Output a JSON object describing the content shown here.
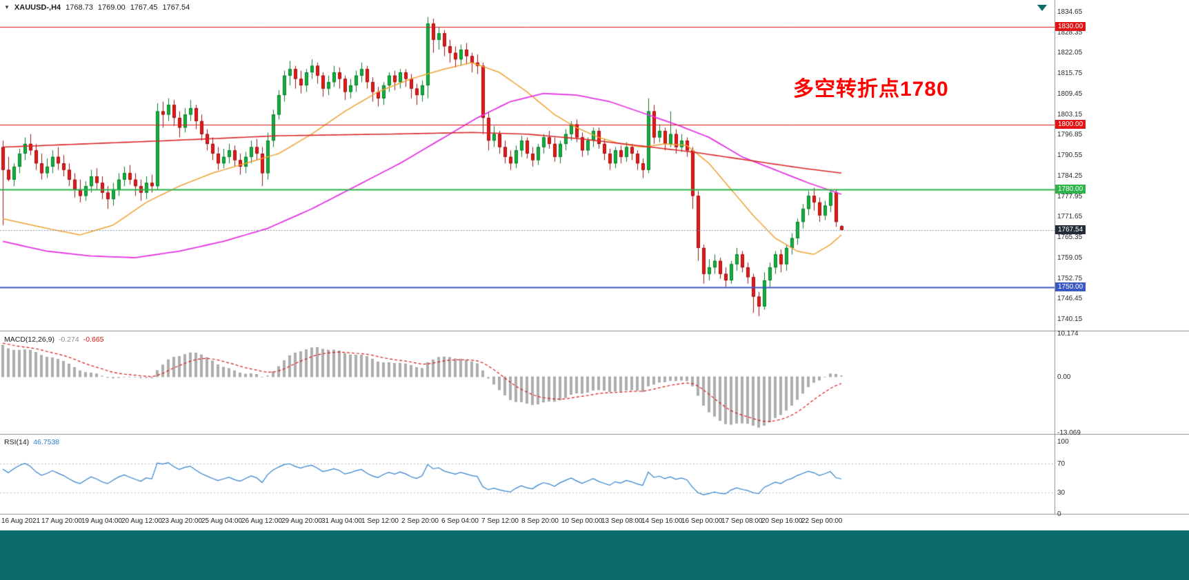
{
  "window": {
    "symbol_tf": "XAUUSD-,H4",
    "ohlc": {
      "open": "1768.73",
      "high": "1769.00",
      "low": "1767.45",
      "close": "1767.54"
    }
  },
  "annotation": {
    "text": "多空转折点1780"
  },
  "colors": {
    "annotation": "#ff0000",
    "bottom_bar": "#0b6b6b",
    "shift_marker": "#0b6b6b",
    "separator": "#8f8f8f",
    "axis_border": "#8f8f8f",
    "current_line": "#8294aa",
    "background": "#ffffff"
  },
  "chart_data": {
    "type": "candlestick",
    "symbol": "XAUUSD-",
    "timeframe": "H4",
    "up_color": "#12b13e",
    "up_stroke": "#077a28",
    "down_color": "#e81717",
    "down_stroke": "#9e0f0f",
    "price_ticks": [
      "1834.65",
      "1828.35",
      "1822.05",
      "1815.75",
      "1809.45",
      "1803.15",
      "1796.85",
      "1790.55",
      "1784.25",
      "1777.95",
      "1771.65",
      "1765.35",
      "1759.05",
      "1752.75",
      "1746.45",
      "1740.15"
    ],
    "time_labels": [
      "16 Aug 2021",
      "17 Aug 20:00",
      "19 Aug 04:00",
      "20 Aug 12:00",
      "23 Aug 20:00",
      "25 Aug 04:00",
      "26 Aug 12:00",
      "29 Aug 20:00",
      "31 Aug 04:00",
      "1 Sep 12:00",
      "2 Sep 20:00",
      "6 Sep 04:00",
      "7 Sep 12:00",
      "8 Sep 20:00",
      "10 Sep 00:00",
      "13 Sep 08:00",
      "14 Sep 16:00",
      "16 Sep 00:00",
      "17 Sep 08:00",
      "20 Sep 16:00",
      "22 Sep 00:00"
    ],
    "horizontal_levels": [
      {
        "label": "1830.00",
        "price": 1830.0,
        "color": "#e01414",
        "width": 1
      },
      {
        "label": "1800.00",
        "price": 1800.0,
        "color": "#e01414",
        "width": 1
      },
      {
        "label": "1780.00",
        "price": 1780.0,
        "color": "#2cb34a",
        "width": 2
      },
      {
        "label": "1750.00",
        "price": 1750.0,
        "color": "#3a57c4",
        "width": 2
      }
    ],
    "current_price": {
      "label": "1767.54",
      "price": 1767.54,
      "badge_color": "#222c38"
    },
    "candles": [
      [
        1793,
        1795,
        1769,
        1786
      ],
      [
        1786,
        1790,
        1782.5,
        1783
      ],
      [
        1783,
        1788,
        1781,
        1787
      ],
      [
        1787,
        1792.5,
        1785,
        1791
      ],
      [
        1791,
        1796,
        1789,
        1794
      ],
      [
        1794,
        1797,
        1790.5,
        1792
      ],
      [
        1792,
        1794,
        1786,
        1788
      ],
      [
        1788,
        1791,
        1783,
        1785
      ],
      [
        1785,
        1789.5,
        1783.5,
        1787
      ],
      [
        1787,
        1792,
        1785,
        1790
      ],
      [
        1790,
        1793,
        1786,
        1788
      ],
      [
        1788,
        1790.5,
        1784,
        1786
      ],
      [
        1786,
        1788,
        1781,
        1783
      ],
      [
        1783,
        1785,
        1777.5,
        1780
      ],
      [
        1780,
        1783,
        1776,
        1778
      ],
      [
        1778,
        1782.5,
        1776.5,
        1781
      ],
      [
        1781,
        1786,
        1779,
        1784
      ],
      [
        1784,
        1786.5,
        1780,
        1782
      ],
      [
        1782,
        1784,
        1777,
        1779
      ],
      [
        1779,
        1781,
        1774,
        1777
      ],
      [
        1777,
        1782,
        1775,
        1780
      ],
      [
        1780,
        1785,
        1778,
        1783
      ],
      [
        1783,
        1787,
        1781,
        1785
      ],
      [
        1785,
        1787.5,
        1781.5,
        1783
      ],
      [
        1783,
        1785,
        1778,
        1781
      ],
      [
        1781,
        1783,
        1776.5,
        1779
      ],
      [
        1779,
        1784,
        1777,
        1782
      ],
      [
        1782,
        1784.5,
        1779,
        1781
      ],
      [
        1781,
        1806.5,
        1780,
        1804
      ],
      [
        1804,
        1807,
        1799,
        1803
      ],
      [
        1803,
        1808,
        1801,
        1806
      ],
      [
        1806,
        1807.5,
        1799.5,
        1802
      ],
      [
        1802,
        1804,
        1796,
        1799
      ],
      [
        1799,
        1805,
        1797.5,
        1803
      ],
      [
        1803,
        1807.5,
        1801,
        1805
      ],
      [
        1805,
        1806,
        1798.5,
        1801
      ],
      [
        1801,
        1803,
        1795,
        1797
      ],
      [
        1797,
        1798.5,
        1792,
        1794
      ],
      [
        1794,
        1796,
        1789,
        1791
      ],
      [
        1791,
        1793,
        1786,
        1788
      ],
      [
        1788,
        1792.5,
        1786.5,
        1790
      ],
      [
        1790,
        1794,
        1788,
        1792
      ],
      [
        1792,
        1793.5,
        1787,
        1789
      ],
      [
        1789,
        1791,
        1784.5,
        1787
      ],
      [
        1787,
        1791.5,
        1785,
        1790
      ],
      [
        1790,
        1795,
        1788,
        1793
      ],
      [
        1793,
        1795.5,
        1789,
        1791
      ],
      [
        1791,
        1793,
        1781,
        1785
      ],
      [
        1785,
        1797.5,
        1783,
        1795
      ],
      [
        1795,
        1804.5,
        1793,
        1803
      ],
      [
        1803,
        1810.5,
        1801.5,
        1809
      ],
      [
        1809,
        1816.5,
        1807,
        1815
      ],
      [
        1815,
        1819.5,
        1812,
        1817
      ],
      [
        1817,
        1818,
        1811,
        1814
      ],
      [
        1814,
        1816.5,
        1809.5,
        1812
      ],
      [
        1812,
        1817,
        1810,
        1816
      ],
      [
        1816,
        1820,
        1814,
        1818
      ],
      [
        1818,
        1819,
        1812.5,
        1815
      ],
      [
        1815,
        1816,
        1808.5,
        1811
      ],
      [
        1811,
        1815,
        1809,
        1813
      ],
      [
        1813,
        1818,
        1811.5,
        1816
      ],
      [
        1816,
        1817.5,
        1811,
        1814
      ],
      [
        1814,
        1815,
        1807.5,
        1810
      ],
      [
        1810,
        1814,
        1808,
        1812
      ],
      [
        1812,
        1816.5,
        1810,
        1815
      ],
      [
        1815,
        1819,
        1813,
        1817
      ],
      [
        1817,
        1818,
        1811,
        1813
      ],
      [
        1813,
        1814.5,
        1807,
        1810
      ],
      [
        1810,
        1811.5,
        1805.5,
        1808
      ],
      [
        1808,
        1813,
        1806,
        1812
      ],
      [
        1812,
        1816,
        1810,
        1815
      ],
      [
        1815,
        1816.5,
        1810.5,
        1813
      ],
      [
        1813,
        1817,
        1811,
        1816
      ],
      [
        1816,
        1817,
        1811.5,
        1814
      ],
      [
        1814,
        1815.5,
        1808,
        1811
      ],
      [
        1811,
        1812.5,
        1806,
        1809
      ],
      [
        1809,
        1813.5,
        1807,
        1812
      ],
      [
        1812,
        1833,
        1808,
        1831
      ],
      [
        1831,
        1832.5,
        1822,
        1826
      ],
      [
        1826,
        1830,
        1823,
        1828
      ],
      [
        1828,
        1829,
        1821,
        1824
      ],
      [
        1824,
        1826,
        1819,
        1822
      ],
      [
        1822,
        1824,
        1817.5,
        1820
      ],
      [
        1820,
        1824.5,
        1818,
        1823
      ],
      [
        1823,
        1825,
        1818.5,
        1821
      ],
      [
        1821,
        1822,
        1816,
        1819
      ],
      [
        1819,
        1821.5,
        1815.5,
        1818
      ],
      [
        1818,
        1819,
        1797,
        1802
      ],
      [
        1802,
        1804,
        1792,
        1795
      ],
      [
        1795,
        1799.5,
        1793,
        1797
      ],
      [
        1797,
        1798,
        1791,
        1793
      ],
      [
        1793,
        1795,
        1788,
        1790
      ],
      [
        1790,
        1792,
        1786,
        1788
      ],
      [
        1788,
        1793.5,
        1786.5,
        1792
      ],
      [
        1792,
        1796.5,
        1790,
        1795
      ],
      [
        1795,
        1796,
        1789.5,
        1791
      ],
      [
        1791,
        1793,
        1787,
        1789
      ],
      [
        1789,
        1794,
        1787.5,
        1793
      ],
      [
        1793,
        1797,
        1791,
        1796
      ],
      [
        1796,
        1798,
        1792.5,
        1794
      ],
      [
        1794,
        1796,
        1788.5,
        1790
      ],
      [
        1790,
        1795,
        1788,
        1794
      ],
      [
        1794,
        1798.5,
        1792,
        1797
      ],
      [
        1797,
        1801,
        1795,
        1800
      ],
      [
        1800,
        1801.5,
        1794.5,
        1796
      ],
      [
        1796,
        1797.5,
        1790,
        1792
      ],
      [
        1792,
        1796,
        1790.5,
        1795
      ],
      [
        1795,
        1799,
        1793,
        1798
      ],
      [
        1798,
        1799,
        1792.5,
        1794
      ],
      [
        1794,
        1795.5,
        1789,
        1791
      ],
      [
        1791,
        1792.5,
        1786,
        1788
      ],
      [
        1788,
        1793,
        1786.5,
        1792
      ],
      [
        1792,
        1793.5,
        1788,
        1790
      ],
      [
        1790,
        1794.5,
        1788.5,
        1793
      ],
      [
        1793,
        1794,
        1789,
        1791
      ],
      [
        1791,
        1792,
        1786,
        1788
      ],
      [
        1788,
        1789.5,
        1783.5,
        1786
      ],
      [
        1786,
        1808,
        1785,
        1804
      ],
      [
        1804,
        1806,
        1794,
        1796
      ],
      [
        1796,
        1800,
        1794.5,
        1798
      ],
      [
        1798,
        1799,
        1792,
        1794
      ],
      [
        1794,
        1804,
        1793,
        1797
      ],
      [
        1797,
        1798.5,
        1791,
        1793
      ],
      [
        1793,
        1797,
        1791.5,
        1795
      ],
      [
        1795,
        1796,
        1790,
        1792
      ],
      [
        1792,
        1793,
        1774,
        1778
      ],
      [
        1778,
        1779.5,
        1758,
        1762
      ],
      [
        1762,
        1763,
        1751,
        1754
      ],
      [
        1754,
        1758.5,
        1752,
        1756
      ],
      [
        1756,
        1760,
        1754,
        1758
      ],
      [
        1758,
        1759,
        1752.5,
        1754
      ],
      [
        1754,
        1756,
        1750,
        1752
      ],
      [
        1752,
        1758,
        1751,
        1757
      ],
      [
        1757,
        1762,
        1755,
        1760
      ],
      [
        1760,
        1761,
        1754.5,
        1756
      ],
      [
        1756,
        1757.5,
        1751,
        1753
      ],
      [
        1753,
        1754,
        1742,
        1747
      ],
      [
        1747,
        1748.5,
        1741,
        1744
      ],
      [
        1744,
        1754.5,
        1743,
        1752
      ],
      [
        1752,
        1757.5,
        1750,
        1756
      ],
      [
        1756,
        1761,
        1754,
        1760
      ],
      [
        1760,
        1761.5,
        1754.5,
        1757
      ],
      [
        1757,
        1763,
        1755,
        1762
      ],
      [
        1762,
        1766.5,
        1760,
        1765
      ],
      [
        1765,
        1771,
        1763,
        1770
      ],
      [
        1770,
        1775.5,
        1768,
        1774
      ],
      [
        1774,
        1779.5,
        1772,
        1778
      ],
      [
        1778,
        1780.5,
        1773.5,
        1776
      ],
      [
        1776,
        1777.5,
        1770,
        1772
      ],
      [
        1772,
        1776.5,
        1770.5,
        1775
      ],
      [
        1775,
        1780,
        1773,
        1779
      ],
      [
        1779,
        1780,
        1768.5,
        1770
      ],
      [
        1768.7,
        1769,
        1767.4,
        1767.5
      ]
    ],
    "ma_lines": [
      {
        "name": "ma-fast-orange",
        "color": "#f0a030",
        "width": 1.5,
        "points": [
          [
            0,
            1771
          ],
          [
            8,
            1768
          ],
          [
            14,
            1766
          ],
          [
            20,
            1769
          ],
          [
            26,
            1776
          ],
          [
            32,
            1781
          ],
          [
            38,
            1785
          ],
          [
            44,
            1788
          ],
          [
            50,
            1791
          ],
          [
            56,
            1797
          ],
          [
            62,
            1804
          ],
          [
            68,
            1810
          ],
          [
            74,
            1814
          ],
          [
            80,
            1817
          ],
          [
            85,
            1819
          ],
          [
            90,
            1816
          ],
          [
            95,
            1810
          ],
          [
            100,
            1803
          ],
          [
            104,
            1799
          ],
          [
            108,
            1796
          ],
          [
            112,
            1794
          ],
          [
            116,
            1793
          ],
          [
            120,
            1794
          ],
          [
            124,
            1793.5
          ],
          [
            128,
            1788
          ],
          [
            132,
            1780
          ],
          [
            136,
            1772
          ],
          [
            140,
            1765
          ],
          [
            144,
            1761
          ],
          [
            147,
            1760
          ],
          [
            150,
            1763
          ],
          [
            152,
            1766
          ]
        ]
      },
      {
        "name": "ma-mid-magenta",
        "color": "#e632e6",
        "width": 1.8,
        "points": [
          [
            0,
            1764
          ],
          [
            8,
            1761
          ],
          [
            16,
            1759.5
          ],
          [
            24,
            1759
          ],
          [
            32,
            1761
          ],
          [
            40,
            1764
          ],
          [
            48,
            1768
          ],
          [
            56,
            1774
          ],
          [
            64,
            1781
          ],
          [
            72,
            1788
          ],
          [
            80,
            1796
          ],
          [
            86,
            1802
          ],
          [
            92,
            1807
          ],
          [
            98,
            1809.5
          ],
          [
            104,
            1809
          ],
          [
            110,
            1807
          ],
          [
            116,
            1803.5
          ],
          [
            122,
            1800
          ],
          [
            128,
            1796
          ],
          [
            134,
            1790
          ],
          [
            140,
            1786
          ],
          [
            146,
            1782
          ],
          [
            152,
            1778.5
          ]
        ]
      },
      {
        "name": "ma-slow-red",
        "color": "#d92525",
        "width": 1.6,
        "points": [
          [
            0,
            1793
          ],
          [
            15,
            1794
          ],
          [
            30,
            1795
          ],
          [
            50,
            1796.5
          ],
          [
            70,
            1797
          ],
          [
            85,
            1797.5
          ],
          [
            95,
            1797
          ],
          [
            105,
            1795.5
          ],
          [
            115,
            1793.5
          ],
          [
            125,
            1791.5
          ],
          [
            135,
            1789
          ],
          [
            145,
            1786.5
          ],
          [
            152,
            1785
          ]
        ]
      }
    ],
    "macd": {
      "name": "MACD(12,26,9)",
      "main_value": "-0.274",
      "signal_value": "-0.665",
      "histogram_color": "#b0b0b0",
      "histogram_stroke": "#8d8d8d",
      "signal_color": "#e01414",
      "axis": [
        {
          "label": "10.174",
          "value": 10.174
        },
        {
          "label": "0.00",
          "value": 0
        },
        {
          "label": "-13.069",
          "value": -13.069
        }
      ]
    },
    "rsi": {
      "name": "RSI(14)",
      "value": "46.7538",
      "line_color": "#2f80d0",
      "level_line_color": "#b9b9b9",
      "level_lines": [
        70,
        30
      ],
      "axis": [
        {
          "label": "100",
          "value": 100
        },
        {
          "label": "70",
          "value": 70
        },
        {
          "label": "30",
          "value": 30
        },
        {
          "label": "0",
          "value": 0
        }
      ]
    }
  }
}
